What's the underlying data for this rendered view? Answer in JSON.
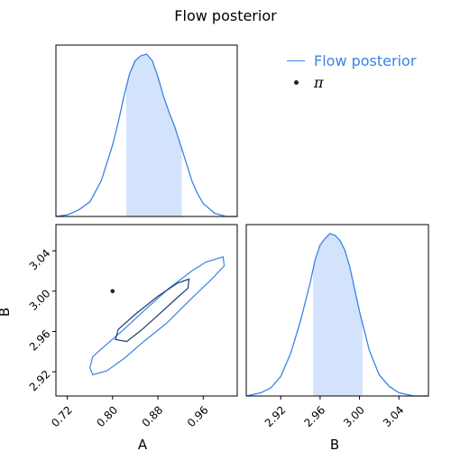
{
  "chart_data": {
    "type": "corner",
    "title": "Flow posterior",
    "legend": {
      "position": "top-right",
      "entries": [
        {
          "label": "Flow posterior",
          "marker": "line",
          "color": "#3b82e6"
        },
        {
          "label": "π",
          "marker": "dot",
          "color": "#222222"
        }
      ]
    },
    "parameters": [
      "A",
      "B"
    ],
    "true_values": {
      "A": 0.8,
      "B": 3.0
    },
    "colors": {
      "fill": "#d3e3fb",
      "line": "#3b82e6",
      "inner_contour": "#1f3b6e",
      "point": "#222222"
    },
    "panels": {
      "A_marginal": {
        "xlim": [
          0.7,
          1.02
        ],
        "x": [
          0.7,
          0.72,
          0.74,
          0.76,
          0.78,
          0.8,
          0.81,
          0.82,
          0.83,
          0.84,
          0.85,
          0.86,
          0.87,
          0.88,
          0.89,
          0.9,
          0.91,
          0.92,
          0.93,
          0.94,
          0.95,
          0.96,
          0.98,
          1.0,
          1.02
        ],
        "density": [
          0.0,
          0.01,
          0.04,
          0.09,
          0.22,
          0.44,
          0.58,
          0.74,
          0.88,
          0.96,
          0.99,
          1.0,
          0.96,
          0.86,
          0.74,
          0.64,
          0.55,
          0.44,
          0.33,
          0.22,
          0.14,
          0.08,
          0.02,
          0.0,
          0.0
        ],
        "shaded_interval": [
          0.824,
          0.922
        ]
      },
      "B_marginal": {
        "xlim": [
          2.885,
          3.07
        ],
        "xticks": [
          2.92,
          2.96,
          3.0,
          3.04
        ],
        "xlabel": "B",
        "x": [
          2.885,
          2.9,
          2.91,
          2.92,
          2.93,
          2.94,
          2.95,
          2.955,
          2.96,
          2.965,
          2.97,
          2.975,
          2.98,
          2.985,
          2.99,
          2.995,
          3.0,
          3.01,
          3.02,
          3.03,
          3.04,
          3.055,
          3.07
        ],
        "density": [
          0.0,
          0.02,
          0.05,
          0.12,
          0.26,
          0.46,
          0.7,
          0.84,
          0.93,
          0.97,
          1.0,
          0.99,
          0.96,
          0.9,
          0.8,
          0.66,
          0.52,
          0.28,
          0.13,
          0.06,
          0.02,
          0.0,
          0.0
        ],
        "shaded_interval": [
          2.953,
          3.003
        ]
      },
      "AB_joint": {
        "xlim": [
          0.7,
          1.02
        ],
        "ylim": [
          2.896,
          3.066
        ],
        "xticks": [
          0.72,
          0.8,
          0.88,
          0.96
        ],
        "yticks": [
          2.92,
          2.96,
          3.0,
          3.04
        ],
        "xlabel": "A",
        "ylabel": "B",
        "outer_contour": [
          [
            0.76,
            2.924
          ],
          [
            0.765,
            2.935
          ],
          [
            0.785,
            2.945
          ],
          [
            0.82,
            2.962
          ],
          [
            0.86,
            2.983
          ],
          [
            0.9,
            3.003
          ],
          [
            0.94,
            3.02
          ],
          [
            0.965,
            3.029
          ],
          [
            0.995,
            3.034
          ],
          [
            0.997,
            3.025
          ],
          [
            0.975,
            3.012
          ],
          [
            0.94,
            2.993
          ],
          [
            0.895,
            2.968
          ],
          [
            0.855,
            2.95
          ],
          [
            0.82,
            2.933
          ],
          [
            0.79,
            2.921
          ],
          [
            0.765,
            2.917
          ]
        ],
        "inner_contour": [
          [
            0.805,
            2.952
          ],
          [
            0.81,
            2.962
          ],
          [
            0.84,
            2.977
          ],
          [
            0.88,
            2.995
          ],
          [
            0.915,
            3.008
          ],
          [
            0.935,
            3.012
          ],
          [
            0.933,
            3.003
          ],
          [
            0.915,
            2.994
          ],
          [
            0.88,
            2.976
          ],
          [
            0.85,
            2.961
          ],
          [
            0.825,
            2.95
          ]
        ]
      }
    }
  }
}
